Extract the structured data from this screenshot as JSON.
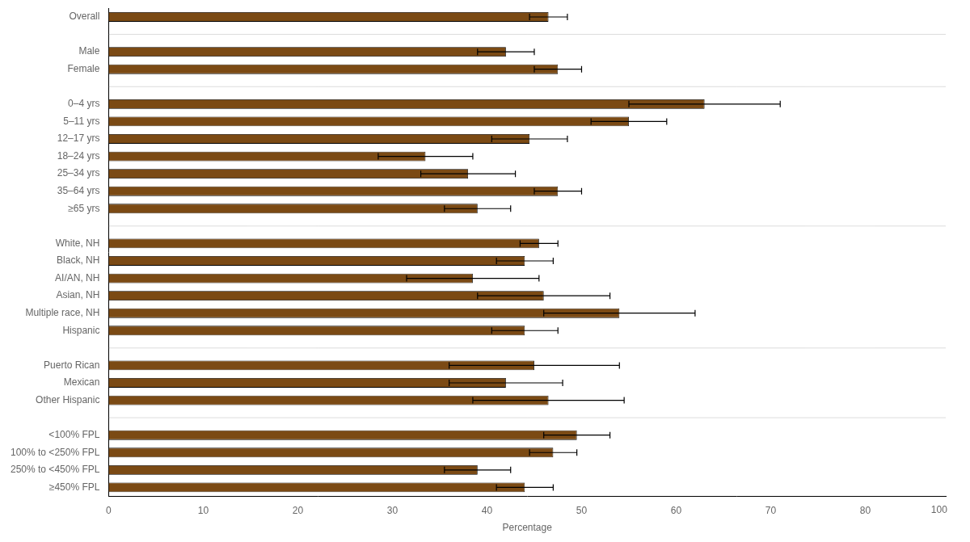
{
  "chart_data": {
    "type": "bar",
    "orientation": "horizontal",
    "xlabel": "Percentage",
    "categories": [
      "Overall",
      null,
      "Male",
      "Female",
      null,
      "0–4 yrs",
      "5–11 yrs",
      "12–17 yrs",
      "18–24 yrs",
      "25–34 yrs",
      "35–64 yrs",
      "≥65 yrs",
      null,
      "White, NH",
      "Black, NH",
      "AI/AN, NH",
      "Asian, NH",
      "Multiple race, NH",
      "Hispanic",
      null,
      "Puerto Rican",
      "Mexican",
      "Other Hispanic",
      null,
      "<100% FPL",
      "100% to <250% FPL",
      "250% to <450% FPL",
      "≥450% FPL"
    ],
    "values": [
      46.5,
      null,
      42.0,
      47.5,
      null,
      63.0,
      55.0,
      44.5,
      33.5,
      38.0,
      47.5,
      39.0,
      null,
      45.5,
      44.0,
      38.5,
      46.0,
      54.0,
      44.0,
      null,
      45.0,
      42.0,
      46.5,
      null,
      49.5,
      47.0,
      39.0,
      44.0
    ],
    "errors": [
      2.0,
      null,
      3.0,
      2.5,
      null,
      8.0,
      4.0,
      4.0,
      5.0,
      5.0,
      2.5,
      3.5,
      null,
      2.0,
      3.0,
      7.0,
      7.0,
      8.0,
      3.5,
      null,
      9.0,
      6.0,
      8.0,
      null,
      3.5,
      2.5,
      3.5,
      3.0
    ],
    "color": "#7B4A14",
    "xlim": [
      0,
      88.5
    ],
    "xticks": [
      0,
      10,
      20,
      30,
      40,
      50,
      60,
      70,
      80
    ],
    "annotations": [
      {
        "text": "100",
        "x": 87.8
      }
    ],
    "grid": false
  }
}
